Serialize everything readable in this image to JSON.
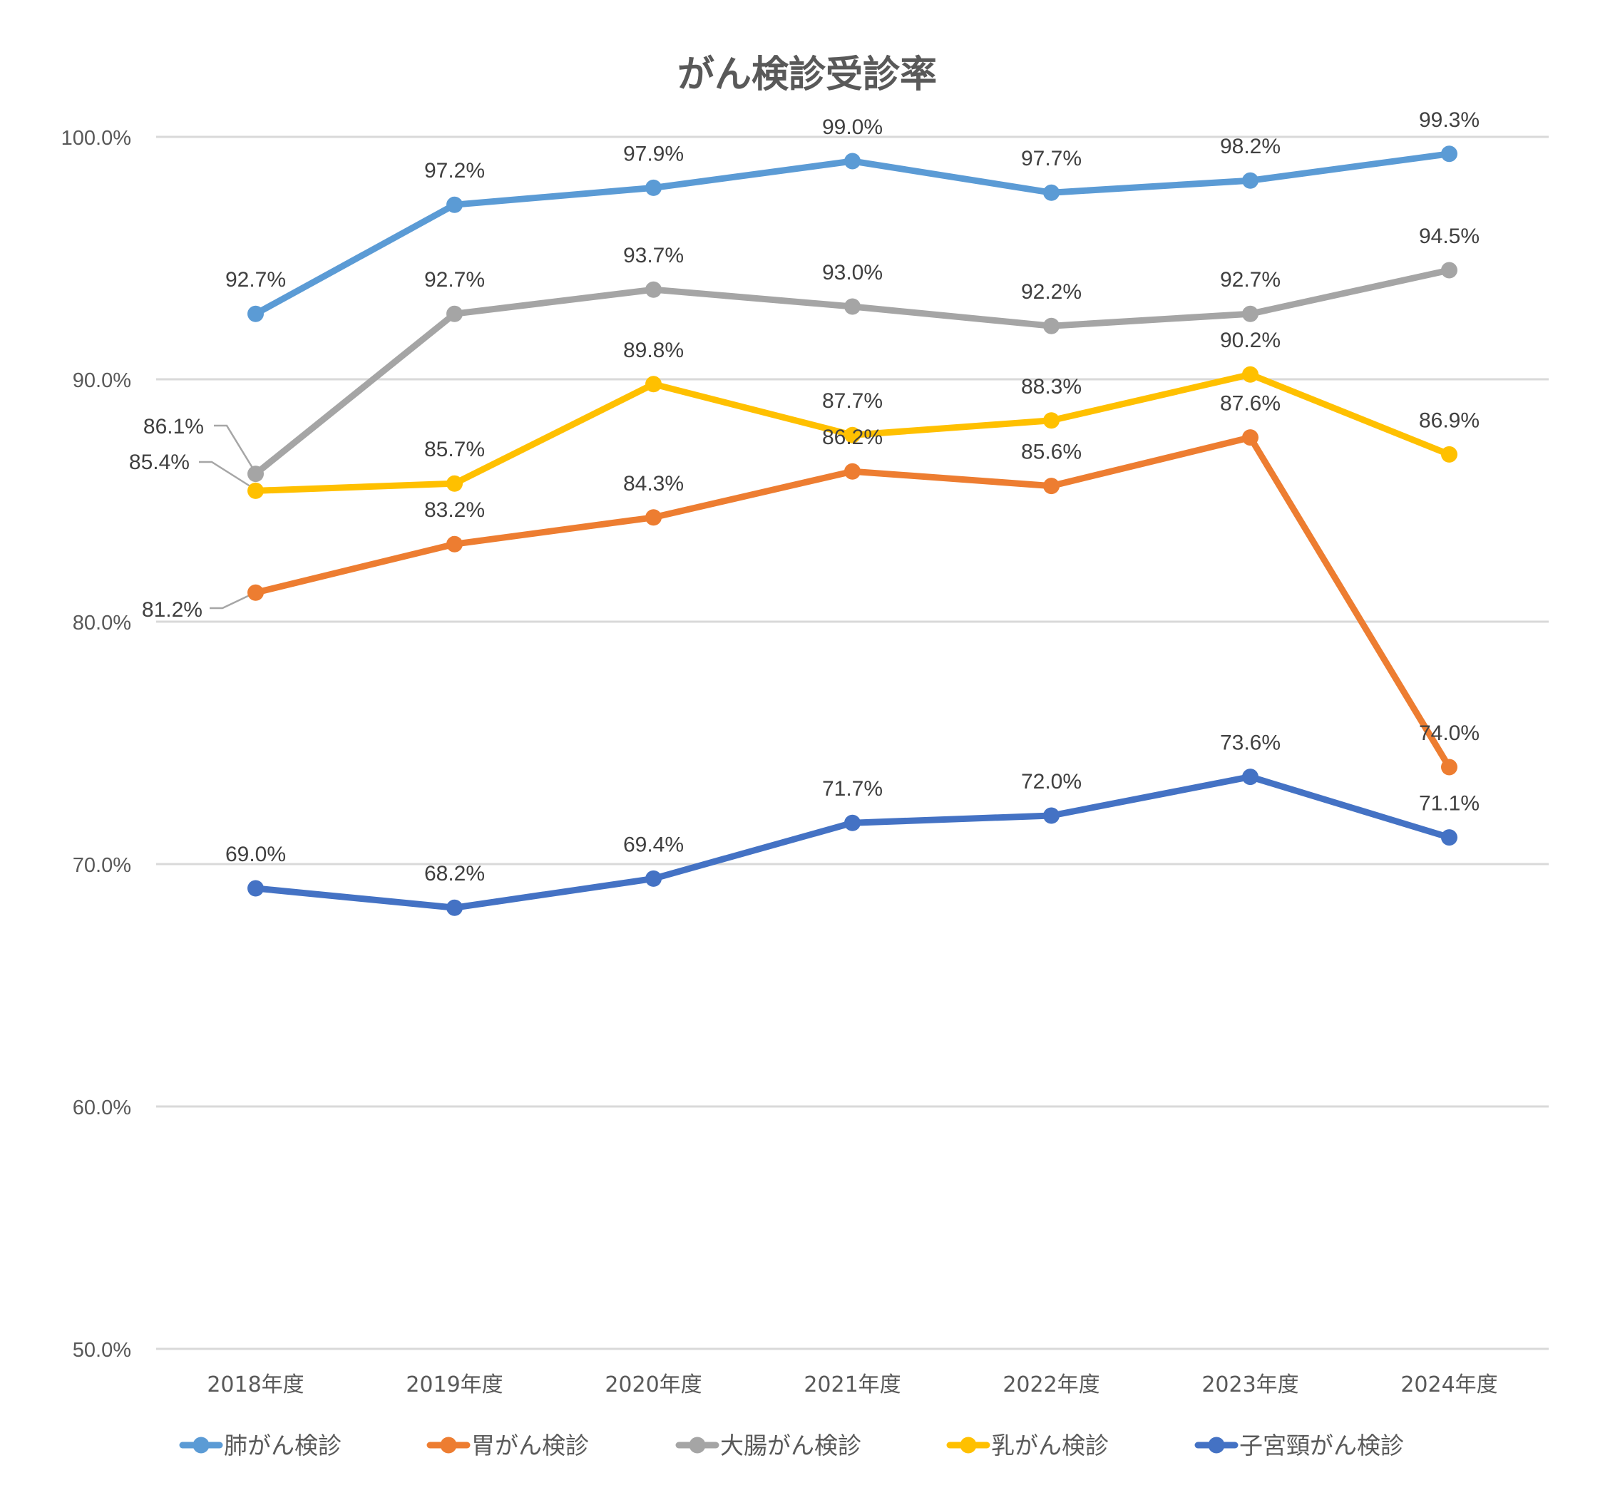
{
  "chart_data": {
    "type": "line",
    "title": "がん検診受診率",
    "xlabel": "",
    "ylabel": "",
    "ylim": [
      50,
      100
    ],
    "yticks": [
      "50.0%",
      "60.0%",
      "70.0%",
      "80.0%",
      "90.0%",
      "100.0%"
    ],
    "ytick_values": [
      50,
      60,
      70,
      80,
      90,
      100
    ],
    "grid": true,
    "legend_position": "bottom",
    "categories": [
      "2018年度",
      "2019年度",
      "2020年度",
      "2021年度",
      "2022年度",
      "2023年度",
      "2024年度"
    ],
    "series": [
      {
        "name": "肺がん検診",
        "color": "#5B9BD5",
        "values": [
          92.7,
          97.2,
          97.9,
          99.0,
          97.7,
          98.2,
          99.3
        ],
        "labels": [
          "92.7%",
          "97.2%",
          "97.9%",
          "99.0%",
          "97.7%",
          "98.2%",
          "99.3%"
        ]
      },
      {
        "name": "胃がん検診",
        "color": "#ED7D31",
        "values": [
          81.2,
          83.2,
          84.3,
          86.2,
          85.6,
          87.6,
          74.0
        ],
        "labels": [
          "81.2%",
          "83.2%",
          "84.3%",
          "86.2%",
          "85.6%",
          "87.6%",
          "74.0%"
        ]
      },
      {
        "name": "大腸がん検診",
        "color": "#A5A5A5",
        "values": [
          86.1,
          92.7,
          93.7,
          93.0,
          92.2,
          92.7,
          94.5
        ],
        "labels": [
          "86.1%",
          "92.7%",
          "93.7%",
          "93.0%",
          "92.2%",
          "92.7%",
          "94.5%"
        ]
      },
      {
        "name": "乳がん検診",
        "color": "#FFC000",
        "values": [
          85.4,
          85.7,
          89.8,
          87.7,
          88.3,
          90.2,
          86.9
        ],
        "labels": [
          "85.4%",
          "85.7%",
          "89.8%",
          "87.7%",
          "88.3%",
          "90.2%",
          "86.9%"
        ]
      },
      {
        "name": "子宮頸がん検診",
        "color": "#4472C4",
        "values": [
          69.0,
          68.2,
          69.4,
          71.7,
          72.0,
          73.6,
          71.1
        ],
        "labels": [
          "69.0%",
          "68.2%",
          "69.4%",
          "71.7%",
          "72.0%",
          "73.6%",
          "71.1%"
        ]
      }
    ]
  }
}
